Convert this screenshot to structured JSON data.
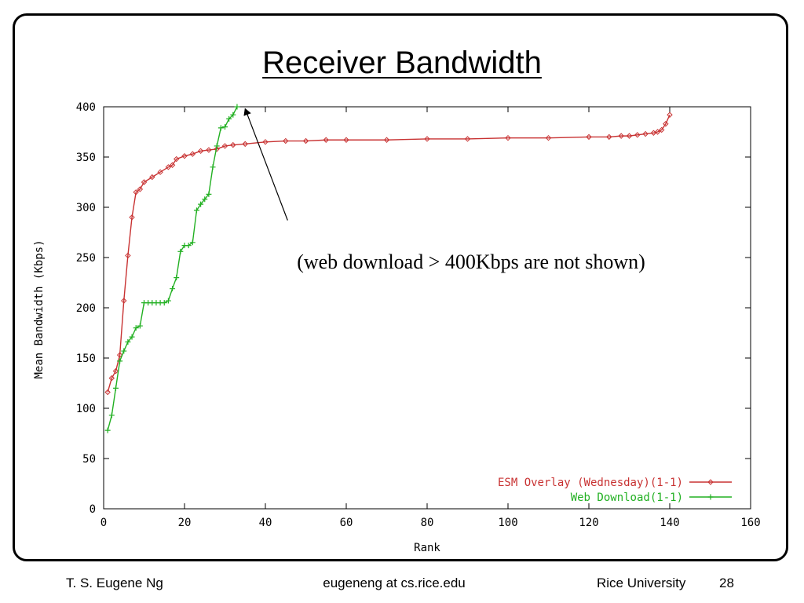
{
  "slide": {
    "title": "Receiver Bandwidth",
    "annotation": "(web download > 400Kbps are not shown)"
  },
  "footer": {
    "author": "T. S. Eugene Ng",
    "email": "eugeneng at cs.rice.edu",
    "org": "Rice University",
    "page": "28"
  },
  "chart_data": {
    "type": "line",
    "xlabel": "Rank",
    "ylabel": "Mean Bandwidth (Kbps)",
    "xlim": [
      0,
      160
    ],
    "ylim": [
      0,
      400
    ],
    "xticks": [
      0,
      20,
      40,
      60,
      80,
      100,
      120,
      140,
      160
    ],
    "yticks": [
      0,
      50,
      100,
      150,
      200,
      250,
      300,
      350,
      400
    ],
    "grid": false,
    "legend_position": "bottom-right",
    "series": [
      {
        "name": "ESM Overlay (Wednesday)(1-1)",
        "color": "#c83232",
        "marker": "diamond",
        "x": [
          1,
          2,
          3,
          4,
          5,
          6,
          7,
          8,
          9,
          10,
          12,
          14,
          16,
          17,
          18,
          20,
          22,
          24,
          26,
          28,
          30,
          32,
          35,
          40,
          45,
          50,
          55,
          60,
          70,
          80,
          90,
          100,
          110,
          120,
          125,
          128,
          130,
          132,
          134,
          136,
          137,
          138,
          139,
          140
        ],
        "y": [
          116,
          130,
          137,
          153,
          207,
          252,
          290,
          315,
          318,
          325,
          330,
          335,
          340,
          342,
          348,
          351,
          353,
          356,
          357,
          358,
          361,
          362,
          363,
          365,
          366,
          366,
          367,
          367,
          367,
          368,
          368,
          369,
          369,
          370,
          370,
          371,
          371,
          372,
          373,
          374,
          375,
          377,
          383,
          392
        ]
      },
      {
        "name": "Web Download(1-1)",
        "color": "#22b022",
        "marker": "plus",
        "x": [
          1,
          2,
          3,
          4,
          5,
          6,
          7,
          8,
          9,
          10,
          11,
          12,
          13,
          14,
          15,
          16,
          17,
          18,
          19,
          20,
          21,
          22,
          23,
          24,
          25,
          26,
          27,
          28,
          29,
          30,
          31,
          32,
          33
        ],
        "y": [
          78,
          93,
          120,
          147,
          157,
          166,
          171,
          180,
          182,
          205,
          205,
          205,
          205,
          205,
          205,
          207,
          219,
          230,
          256,
          262,
          262,
          265,
          297,
          303,
          308,
          313,
          340,
          361,
          379,
          380,
          388,
          392,
          400
        ]
      }
    ],
    "annotation_arrow": {
      "from": [
        45.5,
        287
      ],
      "to": [
        35,
        398
      ]
    }
  }
}
